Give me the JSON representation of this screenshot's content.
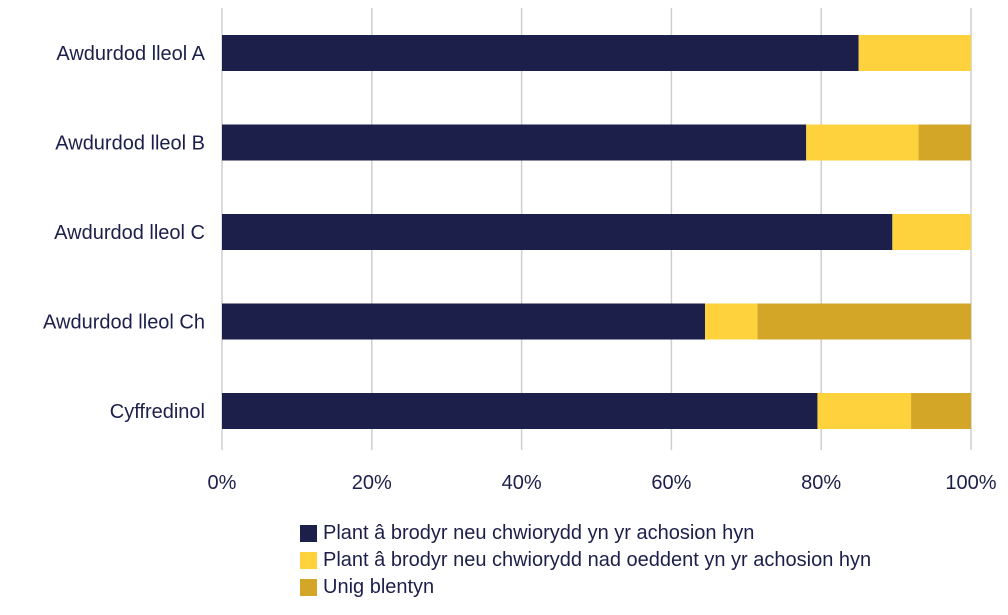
{
  "chart_data": {
    "type": "bar",
    "orientation": "horizontal",
    "stacked": true,
    "percent": true,
    "categories": [
      "Awdurdod lleol A",
      "Awdurdod lleol B",
      "Awdurdod lleol C",
      "Awdurdod lleol Ch",
      "Cyffredinol"
    ],
    "series": [
      {
        "name": "Plant â brodyr neu chwiorydd yn yr achosion hyn",
        "color": "#1b1f4a",
        "values": [
          85,
          78,
          89.5,
          64.5,
          79.5
        ]
      },
      {
        "name": "Plant â brodyr neu chwiorydd nad oeddent yn yr achosion hyn",
        "color": "#fdd23c",
        "values": [
          15,
          15,
          10.5,
          7,
          12.5
        ]
      },
      {
        "name": "Unig blentyn",
        "color": "#d4a628",
        "values": [
          0,
          7,
          0,
          28.5,
          8
        ]
      }
    ],
    "x_ticks": [
      "0%",
      "20%",
      "40%",
      "60%",
      "80%",
      "100%"
    ],
    "xlim": [
      0,
      100
    ],
    "grid": true,
    "legend_position": "bottom",
    "title": "",
    "xlabel": "",
    "ylabel": ""
  }
}
